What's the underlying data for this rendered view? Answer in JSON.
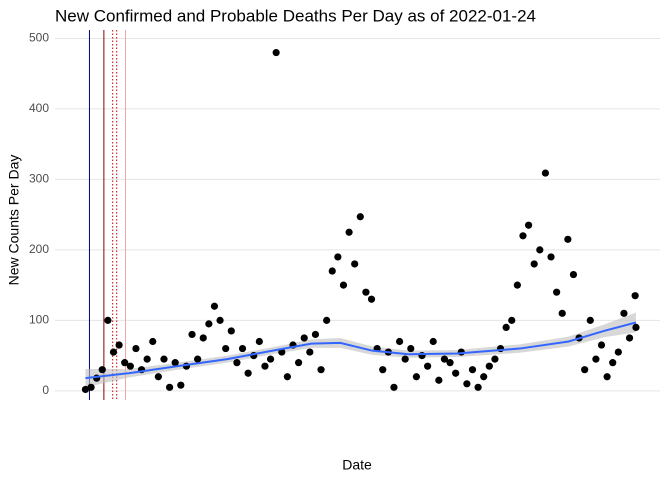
{
  "chart_data": {
    "type": "scatter",
    "title": "New Confirmed and Probable Deaths Per Day as of 2022-01-24",
    "x_label": "Date",
    "y_label": "New Counts Per Day",
    "xlim": [
      "2020-01-30",
      "2022-02-23"
    ],
    "ylim": [
      -13,
      512
    ],
    "yticks": [
      0,
      100,
      200,
      300,
      400,
      500
    ],
    "grid": true,
    "color": "#000000",
    "x": [
      "2020-03-08",
      "2020-03-15",
      "2020-03-22",
      "2020-03-29",
      "2020-04-05",
      "2020-04-12",
      "2020-04-19",
      "2020-04-26",
      "2020-05-03",
      "2020-05-10",
      "2020-05-17",
      "2020-05-24",
      "2020-05-31",
      "2020-06-07",
      "2020-06-14",
      "2020-06-21",
      "2020-06-28",
      "2020-07-05",
      "2020-07-12",
      "2020-07-19",
      "2020-07-26",
      "2020-08-02",
      "2020-08-09",
      "2020-08-16",
      "2020-08-23",
      "2020-08-30",
      "2020-09-06",
      "2020-09-13",
      "2020-09-20",
      "2020-09-27",
      "2020-10-04",
      "2020-10-11",
      "2020-10-18",
      "2020-10-25",
      "2020-11-01",
      "2020-11-08",
      "2020-11-15",
      "2020-11-22",
      "2020-11-29",
      "2020-12-06",
      "2020-12-13",
      "2020-12-20",
      "2020-12-27",
      "2021-01-03",
      "2021-01-10",
      "2021-01-17",
      "2021-01-24",
      "2021-01-31",
      "2021-02-07",
      "2021-02-14",
      "2021-02-21",
      "2021-02-28",
      "2021-03-07",
      "2021-03-14",
      "2021-03-21",
      "2021-03-28",
      "2021-04-04",
      "2021-04-11",
      "2021-04-18",
      "2021-04-25",
      "2021-05-02",
      "2021-05-09",
      "2021-05-16",
      "2021-05-23",
      "2021-05-30",
      "2021-06-06",
      "2021-06-13",
      "2021-06-20",
      "2021-06-27",
      "2021-07-04",
      "2021-07-11",
      "2021-07-18",
      "2021-07-25",
      "2021-08-01",
      "2021-08-08",
      "2021-08-15",
      "2021-08-22",
      "2021-08-29",
      "2021-09-05",
      "2021-09-12",
      "2021-09-19",
      "2021-09-26",
      "2021-10-03",
      "2021-10-10",
      "2021-10-17",
      "2021-10-24",
      "2021-10-31",
      "2021-11-07",
      "2021-11-14",
      "2021-11-21",
      "2021-11-28",
      "2021-12-05",
      "2021-12-12",
      "2021-12-19",
      "2021-12-26",
      "2022-01-02",
      "2022-01-09",
      "2022-01-16",
      "2022-01-23",
      "2022-01-24"
    ],
    "values": [
      2,
      5,
      18,
      30,
      100,
      55,
      65,
      40,
      35,
      60,
      30,
      45,
      70,
      20,
      45,
      5,
      40,
      8,
      35,
      80,
      45,
      75,
      95,
      120,
      100,
      60,
      85,
      40,
      60,
      25,
      50,
      70,
      35,
      45,
      480,
      55,
      20,
      65,
      40,
      75,
      55,
      80,
      30,
      100,
      170,
      190,
      150,
      225,
      180,
      247,
      140,
      130,
      60,
      30,
      55,
      5,
      70,
      45,
      60,
      20,
      50,
      35,
      70,
      15,
      45,
      40,
      25,
      55,
      10,
      30,
      5,
      20,
      35,
      45,
      60,
      90,
      100,
      150,
      220,
      235,
      180,
      200,
      309,
      190,
      140,
      110,
      215,
      165,
      75,
      30,
      100,
      45,
      65,
      20,
      40,
      55,
      110,
      75,
      135,
      90
    ],
    "smooth": {
      "color": "#3366ff",
      "band_color": "#bebebe",
      "x": [
        "2020-03-08",
        "2020-05-01",
        "2020-07-01",
        "2020-09-01",
        "2020-11-01",
        "2020-12-15",
        "2021-01-20",
        "2021-03-01",
        "2021-04-15",
        "2021-06-15",
        "2021-09-01",
        "2021-11-01",
        "2021-12-15",
        "2022-01-24"
      ],
      "values": [
        18,
        25,
        35,
        45,
        58,
        67,
        68,
        57,
        52,
        53,
        60,
        70,
        85,
        97
      ],
      "lower": [
        5,
        19,
        30,
        40,
        53,
        61,
        61,
        51,
        47,
        48,
        54,
        63,
        76,
        83
      ],
      "upper": [
        31,
        31,
        40,
        50,
        63,
        73,
        75,
        63,
        57,
        58,
        66,
        77,
        94,
        111
      ]
    },
    "vlines": [
      {
        "x": "2020-03-13",
        "color": "#00008b",
        "dashed": false
      },
      {
        "x": "2020-03-31",
        "color": "#8b0000",
        "dashed": false
      },
      {
        "x": "2020-04-11",
        "color": "#cc0000",
        "dashed": true
      },
      {
        "x": "2020-04-16",
        "color": "#cc0000",
        "dashed": true
      },
      {
        "x": "2020-04-27",
        "color": "#f4a6a6",
        "dashed": false
      }
    ]
  }
}
